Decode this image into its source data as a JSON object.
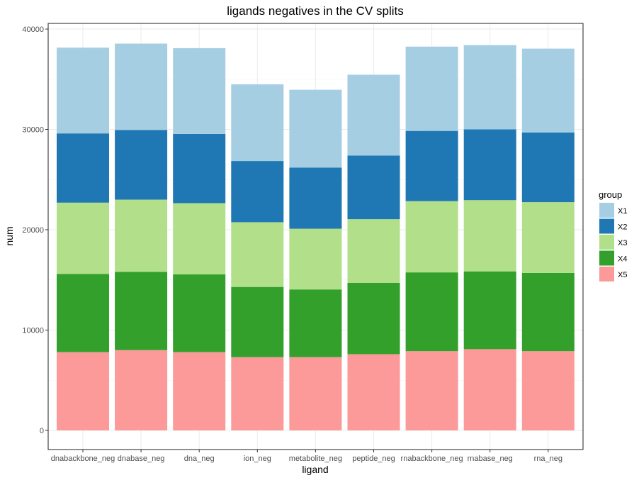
{
  "chart_data": {
    "type": "bar",
    "stacked": true,
    "title": "ligands negatives in the CV splits",
    "xlabel": "ligand",
    "ylabel": "num",
    "ylim": [
      0,
      40000
    ],
    "y_ticks": [
      0,
      10000,
      20000,
      30000,
      40000
    ],
    "y_tick_labels": [
      "0",
      "10000",
      "20000",
      "30000",
      "40000"
    ],
    "categories": [
      "dnabackbone_neg",
      "dnabase_neg",
      "dna_neg",
      "ion_neg",
      "metabolite_neg",
      "peptide_neg",
      "rnabackbone_neg",
      "rnabase_neg",
      "rna_neg"
    ],
    "legend": {
      "title": "group",
      "position": "right"
    },
    "grid": true,
    "series": [
      {
        "name": "X5",
        "color": "#FB9A99",
        "values": [
          7800,
          8000,
          7800,
          7300,
          7300,
          7600,
          7900,
          8100,
          7900
        ]
      },
      {
        "name": "X4",
        "color": "#33A02C",
        "values": [
          7800,
          7800,
          7750,
          7000,
          6750,
          7100,
          7850,
          7750,
          7800
        ]
      },
      {
        "name": "X3",
        "color": "#B2DF8A",
        "values": [
          7100,
          7200,
          7100,
          6450,
          6050,
          6350,
          7100,
          7100,
          7050
        ]
      },
      {
        "name": "X2",
        "color": "#1F78B4",
        "values": [
          6900,
          6950,
          6900,
          6100,
          6100,
          6350,
          7000,
          7050,
          6950
        ]
      },
      {
        "name": "X1",
        "color": "#A6CEE3",
        "values": [
          8550,
          8600,
          8550,
          7650,
          7750,
          8050,
          8400,
          8400,
          8350
        ]
      }
    ]
  }
}
